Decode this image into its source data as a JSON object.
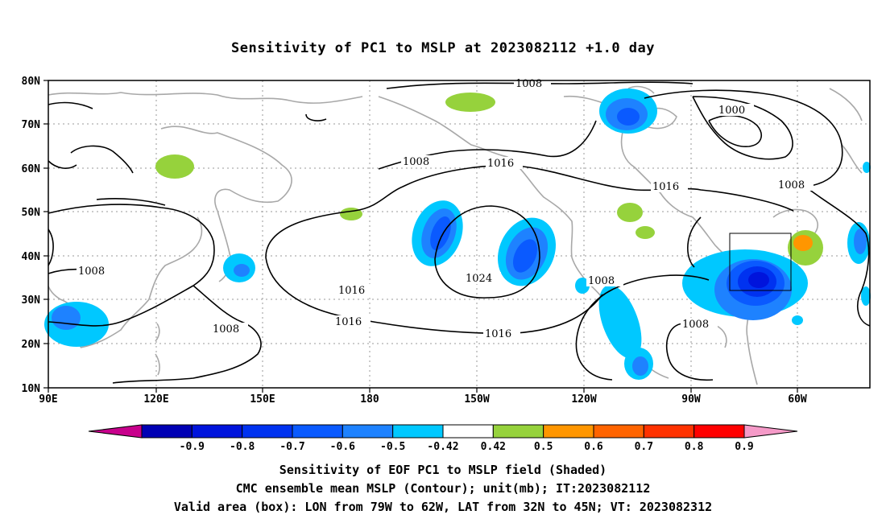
{
  "title": "Sensitivity of PC1 to MSLP at 2023082112 +1.0 day",
  "lat_ticks": [
    "80N",
    "70N",
    "60N",
    "50N",
    "40N",
    "30N",
    "20N",
    "10N"
  ],
  "lon_ticks": [
    "90E",
    "120E",
    "150E",
    "180",
    "150W",
    "120W",
    "90W",
    "60W"
  ],
  "contour_labels": [
    "1008",
    "1000",
    "1008",
    "1016",
    "1016",
    "1008",
    "1016",
    "1024",
    "1008",
    "1016",
    "1016",
    "1008",
    "1008",
    "1008"
  ],
  "colorbar": {
    "labels": [
      "-0.9",
      "-0.8",
      "-0.7",
      "-0.6",
      "-0.5",
      "-0.42",
      "0.42",
      "0.5",
      "0.6",
      "0.7",
      "0.8",
      "0.9"
    ],
    "colors": [
      "#c8008c",
      "#0000b4",
      "#0014dc",
      "#0032f0",
      "#0a5aff",
      "#1e82ff",
      "#00c8ff",
      "#ffffff",
      "#96d23c",
      "#ff9600",
      "#ff6400",
      "#ff3200",
      "#ff0000",
      "#f59ac8"
    ]
  },
  "captions": {
    "line1": "Sensitivity of EOF PC1 to MSLP field (Shaded)",
    "line2": "CMC ensemble mean MSLP (Contour); unit(mb); IT:2023082112",
    "line3": "Valid area (box): LON from 79W to 62W, LAT from 32N to 45N; VT: 2023082312"
  }
}
